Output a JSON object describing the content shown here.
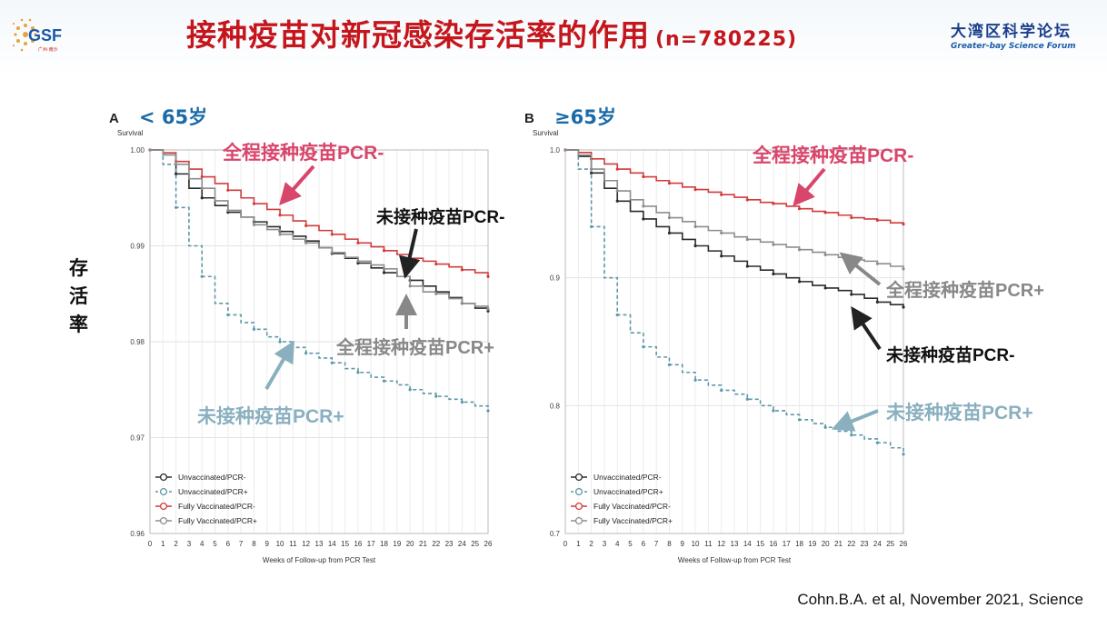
{
  "header": {
    "logo_text": "GSF",
    "logo_sub": "广州·南沙",
    "title": "接种疫苗对新冠感染存活率的作用",
    "n_label": "(n=780225)",
    "forum_cn": "大湾区科学论坛",
    "forum_en": "Greater-bay Science Forum"
  },
  "ylabel_cn": [
    "存",
    "活",
    "率"
  ],
  "citation": "Cohn.B.A. et al, November 2021, Science",
  "colors": {
    "unvax_neg": "#2b2b2b",
    "unvax_pos": "#5c97a8",
    "fullvax_neg": "#d33a3a",
    "fullvax_pos": "#8d8d8d",
    "title": "#c4161c",
    "panel_age": "#1a6aa8"
  },
  "annotations": {
    "A": [
      {
        "text": "全程接种疫苗PCR-",
        "color": "#d9466c"
      },
      {
        "text": "未接种疫苗PCR-",
        "color": "#111111"
      },
      {
        "text": "全程接种疫苗PCR+",
        "color": "#888888"
      },
      {
        "text": "未接种疫苗PCR+",
        "color": "#8ab0c0"
      }
    ],
    "B": [
      {
        "text": "全程接种疫苗PCR-",
        "color": "#d9466c"
      },
      {
        "text": "全程接种疫苗PCR+",
        "color": "#888888"
      },
      {
        "text": "未接种疫苗PCR-",
        "color": "#111111"
      },
      {
        "text": "未接种疫苗PCR+",
        "color": "#8ab0c0"
      }
    ]
  },
  "chart_data": [
    {
      "type": "line",
      "panel": "A",
      "age_label": "< 65岁",
      "ylabel": "Survival",
      "xlabel": "Weeks of Follow-up from PCR Test",
      "xlim": [
        0,
        26
      ],
      "ylim": [
        0.96,
        1.0
      ],
      "y_ticks": [
        "1.00",
        "0.99",
        "0.98",
        "0.97",
        "0.96"
      ],
      "x": [
        0,
        1,
        2,
        3,
        4,
        5,
        6,
        7,
        8,
        9,
        10,
        11,
        12,
        13,
        14,
        15,
        16,
        17,
        18,
        19,
        20,
        21,
        22,
        23,
        24,
        25,
        26
      ],
      "series": [
        {
          "name": "Unvaccinated/PCR-",
          "values": [
            1.0,
            0.9995,
            0.9975,
            0.996,
            0.995,
            0.9942,
            0.9935,
            0.993,
            0.9925,
            0.992,
            0.9915,
            0.991,
            0.9905,
            0.9898,
            0.9892,
            0.9887,
            0.9882,
            0.9877,
            0.9872,
            0.9868,
            0.9864,
            0.9858,
            0.9852,
            0.9846,
            0.984,
            0.9835,
            0.9832
          ]
        },
        {
          "name": "Unvaccinated/PCR+",
          "values": [
            1.0,
            0.9985,
            0.994,
            0.99,
            0.9868,
            0.984,
            0.9828,
            0.982,
            0.9813,
            0.9805,
            0.98,
            0.9794,
            0.9788,
            0.9783,
            0.9778,
            0.9772,
            0.9768,
            0.9763,
            0.9759,
            0.9755,
            0.975,
            0.9746,
            0.9743,
            0.974,
            0.9737,
            0.9733,
            0.9728
          ]
        },
        {
          "name": "Fully Vaccinated/PCR-",
          "values": [
            1.0,
            0.9997,
            0.9988,
            0.998,
            0.9972,
            0.9965,
            0.9958,
            0.995,
            0.9944,
            0.9938,
            0.9932,
            0.9926,
            0.9921,
            0.9916,
            0.9912,
            0.9907,
            0.9903,
            0.9899,
            0.9895,
            0.9891,
            0.9887,
            0.9884,
            0.9881,
            0.9878,
            0.9875,
            0.9872,
            0.9868
          ]
        },
        {
          "name": "Fully Vaccinated/PCR+",
          "values": [
            1.0,
            0.9995,
            0.9985,
            0.997,
            0.996,
            0.9947,
            0.9937,
            0.993,
            0.9922,
            0.9917,
            0.9912,
            0.9907,
            0.9903,
            0.9898,
            0.9893,
            0.9888,
            0.9884,
            0.988,
            0.9876,
            0.9868,
            0.9858,
            0.9852,
            0.985,
            0.9845,
            0.984,
            0.9837,
            0.9834
          ]
        }
      ]
    },
    {
      "type": "line",
      "panel": "B",
      "age_label": "≥65岁",
      "ylabel": "Survival",
      "xlabel": "Weeks of Follow-up from PCR Test",
      "xlim": [
        0,
        26
      ],
      "ylim": [
        0.7,
        1.0
      ],
      "y_ticks": [
        "1.0",
        "0.9",
        "0.8",
        "0.7"
      ],
      "x": [
        0,
        1,
        2,
        3,
        4,
        5,
        6,
        7,
        8,
        9,
        10,
        11,
        12,
        13,
        14,
        15,
        16,
        17,
        18,
        19,
        20,
        21,
        22,
        23,
        24,
        25,
        26
      ],
      "series": [
        {
          "name": "Unvaccinated/PCR-",
          "values": [
            1.0,
            0.995,
            0.982,
            0.97,
            0.96,
            0.952,
            0.946,
            0.94,
            0.935,
            0.93,
            0.925,
            0.921,
            0.917,
            0.913,
            0.909,
            0.906,
            0.903,
            0.9,
            0.897,
            0.894,
            0.892,
            0.89,
            0.887,
            0.884,
            0.881,
            0.879,
            0.877
          ]
        },
        {
          "name": "Unvaccinated/PCR+",
          "values": [
            1.0,
            0.985,
            0.94,
            0.9,
            0.871,
            0.857,
            0.846,
            0.838,
            0.832,
            0.826,
            0.82,
            0.816,
            0.812,
            0.809,
            0.805,
            0.8,
            0.796,
            0.793,
            0.789,
            0.786,
            0.783,
            0.78,
            0.777,
            0.774,
            0.771,
            0.767,
            0.762
          ]
        },
        {
          "name": "Fully Vaccinated/PCR-",
          "values": [
            1.0,
            0.998,
            0.993,
            0.989,
            0.985,
            0.982,
            0.979,
            0.976,
            0.974,
            0.971,
            0.969,
            0.967,
            0.965,
            0.963,
            0.961,
            0.959,
            0.958,
            0.956,
            0.954,
            0.952,
            0.951,
            0.949,
            0.947,
            0.946,
            0.945,
            0.943,
            0.942
          ]
        },
        {
          "name": "Fully Vaccinated/PCR+",
          "values": [
            1.0,
            0.996,
            0.985,
            0.976,
            0.968,
            0.961,
            0.956,
            0.951,
            0.947,
            0.944,
            0.94,
            0.937,
            0.935,
            0.932,
            0.93,
            0.928,
            0.926,
            0.924,
            0.922,
            0.92,
            0.918,
            0.916,
            0.914,
            0.913,
            0.911,
            0.909,
            0.907
          ]
        }
      ]
    }
  ]
}
